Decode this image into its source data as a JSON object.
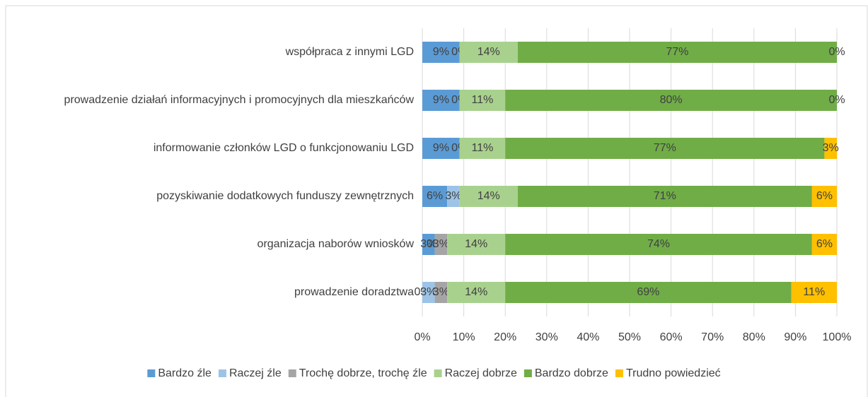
{
  "chart_data": {
    "type": "stacked_bar_horizontal",
    "categories": [
      "współpraca z innymi LGD",
      "prowadzenie działań informacyjnych i promocyjnych dla mieszkańców",
      "informowanie członków LGD o funkcjonowaniu LGD",
      "pozyskiwanie dodatkowych funduszy zewnętrznych",
      "organizacja naborów wniosków",
      "prowadzenie doradztwa"
    ],
    "series": [
      {
        "name": "Bardzo źle",
        "color": "#5b9bd5",
        "values": [
          9,
          9,
          9,
          6,
          3,
          0
        ],
        "value_labels": [
          "9%",
          "9%",
          "9%",
          "6%",
          "3%",
          "0%"
        ]
      },
      {
        "name": "Raczej źle",
        "color": "#9dc3e6",
        "values": [
          0,
          0,
          0,
          3,
          0,
          3
        ],
        "value_labels": [
          "0%",
          "0%",
          "0%",
          "3%",
          "0%",
          "3%"
        ]
      },
      {
        "name": "Trochę dobrze, trochę źle",
        "color": "#a5a5a5",
        "values": [
          0,
          0,
          0,
          0,
          3,
          3
        ],
        "value_labels": [
          null,
          null,
          null,
          null,
          "3%",
          "3%"
        ]
      },
      {
        "name": "Raczej dobrze",
        "color": "#a9d18e",
        "values": [
          14,
          11,
          11,
          14,
          14,
          14
        ],
        "value_labels": [
          "14%",
          "11%",
          "11%",
          "14%",
          "14%",
          "14%"
        ]
      },
      {
        "name": "Bardzo dobrze",
        "color": "#70ad47",
        "values": [
          77,
          80,
          77,
          71,
          74,
          69
        ],
        "value_labels": [
          "77%",
          "80%",
          "77%",
          "71%",
          "74%",
          "69%"
        ]
      },
      {
        "name": "Trudno powiedzieć",
        "color": "#ffc000",
        "values": [
          0,
          0,
          3,
          6,
          6,
          11
        ],
        "value_labels": [
          "0%",
          "0%",
          "3%",
          "6%",
          "6%",
          "11%"
        ]
      }
    ],
    "xlim": [
      0,
      100
    ],
    "xticks": [
      {
        "value": 0,
        "label": "0%"
      },
      {
        "value": 10,
        "label": "10%"
      },
      {
        "value": 20,
        "label": "20%"
      },
      {
        "value": 30,
        "label": "30%"
      },
      {
        "value": 40,
        "label": "40%"
      },
      {
        "value": 50,
        "label": "50%"
      },
      {
        "value": 60,
        "label": "60%"
      },
      {
        "value": 70,
        "label": "70%"
      },
      {
        "value": 80,
        "label": "80%"
      },
      {
        "value": 90,
        "label": "90%"
      },
      {
        "value": 100,
        "label": "100%"
      }
    ],
    "grid": true,
    "legend": "bottom"
  }
}
